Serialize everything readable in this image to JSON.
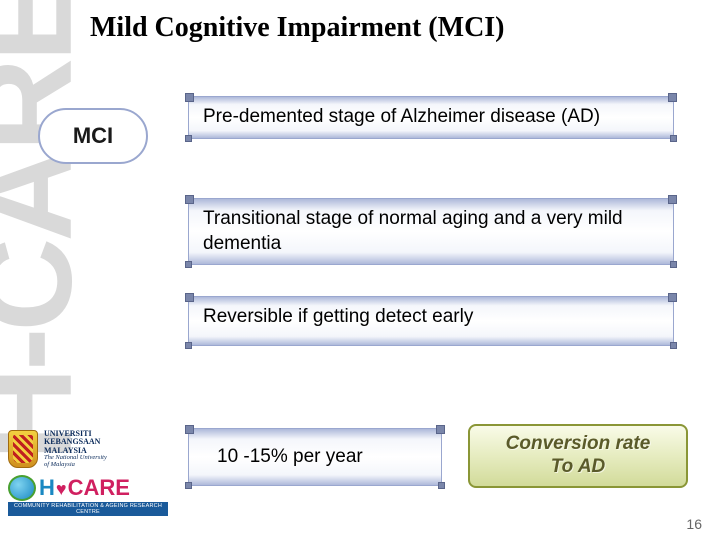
{
  "title": "Mild Cognitive Impairment (MCI)",
  "watermark": "H-CARE",
  "mci_label": "MCI",
  "boxes": {
    "b1": "Pre-demented stage of Alzheimer disease (AD)",
    "b2": "Transitional stage of normal aging and a  very mild dementia",
    "b3": "Reversible if getting detect early",
    "b4": "10 -15% per year"
  },
  "conversion": {
    "line1": "Conversion rate",
    "line2": "To AD"
  },
  "page_number": "16",
  "logos": {
    "university_line1": "UNIVERSITI",
    "university_line2": "KEBANGSAAN",
    "university_line3": "MALAYSIA",
    "university_sub1": "The National University",
    "university_sub2": "of Malaysia",
    "hcare_h": "H",
    "hcare_heart": "♥",
    "hcare_care": "CARE",
    "hcare_band": "COMMUNITY REHABILITATION & AGEING RESEARCH CENTRE"
  },
  "colors": {
    "box_border": "#9aa7cf",
    "box_grad_edge": "#aeb9da",
    "conversion_border": "#8a9636",
    "conversion_text": "#5a5a2a",
    "watermark": "#d9d9d9",
    "title": "#000000"
  },
  "fonts": {
    "title_family": "Times New Roman",
    "title_size_pt": 21,
    "body_size_pt": 14,
    "mci_size_pt": 16
  }
}
